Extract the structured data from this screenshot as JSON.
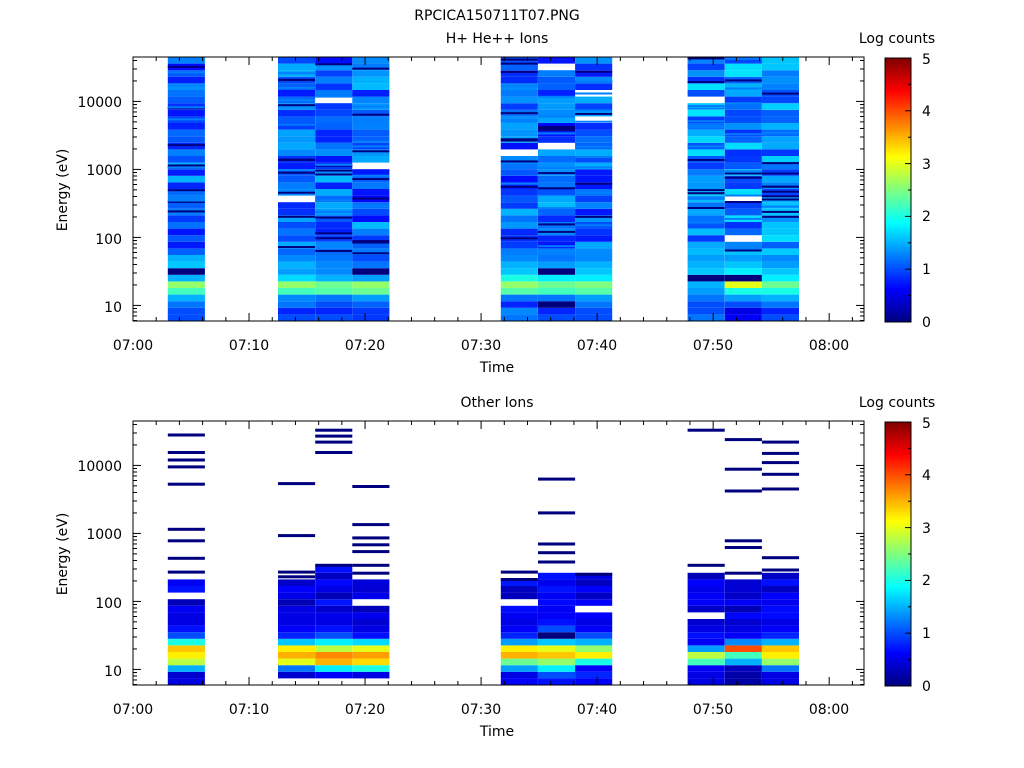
{
  "figure": {
    "title": "RPCICA150711T07.PNG"
  },
  "colormap": [
    "#00007f",
    "#0000ff",
    "#007fff",
    "#00ffff",
    "#7fff7f",
    "#ffff00",
    "#ff7f00",
    "#ff0000",
    "#7f0000"
  ],
  "chart_data": [
    {
      "type": "heatmap",
      "title": "H+ He++ Ions",
      "xlabel": "Time",
      "ylabel": "Energy (eV)",
      "x_ticks": [
        "07:00",
        "07:10",
        "07:20",
        "07:30",
        "07:40",
        "07:50",
        "08:00"
      ],
      "y_ticks": [
        "10",
        "100",
        "1000",
        "10000"
      ],
      "y_scale": "log",
      "ylim": [
        5.9,
        45000
      ],
      "xlim_minutes": [
        0,
        63
      ],
      "colorbar": {
        "label": "Log counts",
        "ticks": [
          "0",
          "1",
          "2",
          "3",
          "4",
          "5"
        ],
        "range": [
          0,
          5
        ]
      },
      "columns": [
        {
          "start": 3.0,
          "end": 6.2,
          "lowE": [
            1.0,
            1.0,
            1.2,
            1.5,
            2.2,
            2.6,
            1.5,
            0.0,
            1.6,
            1.5
          ],
          "baseHi": 1.1
        },
        {
          "start": 12.5,
          "end": 15.7,
          "lowE": [
            1.0,
            0.8,
            1.2,
            1.3,
            2.2,
            2.6,
            1.7,
            1.4,
            1.5,
            1.3
          ],
          "baseHi": 1.1
        },
        {
          "start": 15.7,
          "end": 18.9,
          "lowE": [
            1.0,
            0.8,
            1.0,
            1.2,
            2.3,
            2.4,
            1.5,
            1.3,
            1.3,
            1.2
          ],
          "baseHi": 1.1
        },
        {
          "start": 18.9,
          "end": 22.1,
          "lowE": [
            0.9,
            0.9,
            1.1,
            1.4,
            2.4,
            2.6,
            1.4,
            0.0,
            1.2,
            1.0
          ],
          "baseHi": 1.1
        },
        {
          "start": 31.7,
          "end": 34.9,
          "lowE": [
            1.2,
            1.3,
            0.8,
            1.2,
            2.3,
            2.6,
            2.0,
            1.6,
            1.5,
            1.3
          ],
          "baseHi": 1.1
        },
        {
          "start": 34.9,
          "end": 38.1,
          "lowE": [
            1.0,
            0.8,
            0.0,
            1.2,
            2.2,
            2.4,
            1.8,
            0.0,
            1.4,
            1.2
          ],
          "baseHi": 1.1
        },
        {
          "start": 38.1,
          "end": 41.3,
          "lowE": [
            1.0,
            1.0,
            1.2,
            1.4,
            2.3,
            2.5,
            1.8,
            1.6,
            1.5,
            1.3
          ],
          "baseHi": 1.1
        },
        {
          "start": 47.8,
          "end": 51.0,
          "lowE": [
            1.2,
            1.0,
            1.0,
            1.2,
            1.4,
            1.5,
            0.0,
            1.6,
            1.5,
            1.4
          ],
          "baseHi": 1.3
        },
        {
          "start": 51.0,
          "end": 54.2,
          "lowE": [
            0.6,
            0.5,
            1.0,
            1.4,
            2.0,
            3.0,
            0.0,
            1.8,
            1.6,
            1.4
          ],
          "baseHi": 1.3
        },
        {
          "start": 54.2,
          "end": 57.4,
          "lowE": [
            1.0,
            0.8,
            1.2,
            1.5,
            2.0,
            2.4,
            1.8,
            1.6,
            1.4,
            1.3
          ],
          "baseHi": 1.3
        }
      ]
    },
    {
      "type": "heatmap",
      "title": "Other Ions",
      "xlabel": "Time",
      "ylabel": "Energy (eV)",
      "x_ticks": [
        "07:00",
        "07:10",
        "07:20",
        "07:30",
        "07:40",
        "07:50",
        "08:00"
      ],
      "y_ticks": [
        "10",
        "100",
        "1000",
        "10000"
      ],
      "y_scale": "log",
      "ylim": [
        5.9,
        45000
      ],
      "xlim_minutes": [
        0,
        63
      ],
      "colorbar": {
        "label": "Log counts",
        "ticks": [
          "0",
          "1",
          "2",
          "3",
          "4",
          "5"
        ],
        "range": [
          0,
          5
        ]
      },
      "columns": [
        {
          "start": 3.0,
          "end": 6.2,
          "lowE": [
            0.5,
            0.4,
            1.5,
            2.8,
            3.2,
            3.4,
            2.0,
            1.0,
            0.7,
            0.5
          ],
          "sparse": [
            270,
            430,
            780,
            1150,
            5300,
            9500,
            12000,
            15500,
            28000
          ],
          "hiTop": 200
        },
        {
          "start": 12.5,
          "end": 15.7,
          "lowE": [
            null,
            0.4,
            1.2,
            3.0,
            3.5,
            3.2,
            1.6,
            0.8,
            0.6,
            0.5
          ],
          "sparse": [
            230,
            270,
            930,
            5400
          ],
          "hiTop": 200
        },
        {
          "start": 15.7,
          "end": 18.9,
          "lowE": [
            null,
            0.6,
            1.8,
            3.5,
            3.7,
            2.8,
            1.8,
            1.0,
            0.7,
            0.5
          ],
          "sparse": [
            340,
            15500,
            22000,
            27000,
            33000
          ],
          "hiTop": 270
        },
        {
          "start": 18.9,
          "end": 22.1,
          "lowE": [
            null,
            0.5,
            2.0,
            3.3,
            3.6,
            3.0,
            1.7,
            0.7,
            0.5,
            0.4
          ],
          "sparse": [
            260,
            340,
            540,
            680,
            860,
            1350,
            4900
          ],
          "hiTop": 200
        },
        {
          "start": 31.7,
          "end": 34.9,
          "lowE": [
            0.6,
            0.5,
            1.4,
            2.4,
            3.5,
            3.2,
            1.4,
            0.8,
            0.6,
            0.5
          ],
          "sparse": [
            210,
            270
          ],
          "hiTop": 200
        },
        {
          "start": 34.9,
          "end": 38.1,
          "lowE": [
            0.7,
            1.0,
            1.8,
            2.6,
            3.4,
            3.0,
            1.6,
            0.0,
            1.0,
            0.7
          ],
          "sparse": [
            380,
            520,
            700,
            2000,
            6300
          ],
          "hiTop": 230
        },
        {
          "start": 38.1,
          "end": 41.3,
          "lowE": [
            0.6,
            0.8,
            0.6,
            2.0,
            3.2,
            2.6,
            1.5,
            1.0,
            0.6,
            0.5
          ],
          "sparse": [
            250
          ],
          "hiTop": 230
        },
        {
          "start": 47.8,
          "end": 51.0,
          "lowE": [
            0.5,
            0.5,
            0.6,
            2.2,
            2.8,
            1.4,
            0.6,
            0.7,
            0.5,
            0.4
          ],
          "sparse": [
            340,
            33000
          ],
          "hiTop": 220
        },
        {
          "start": 51.0,
          "end": 54.2,
          "lowE": [
            0.2,
            0.2,
            0.3,
            1.5,
            2.2,
            4.0,
            1.3,
            0.6,
            0.5,
            0.4
          ],
          "sparse": [
            260,
            620,
            780,
            4200,
            8800,
            24000
          ],
          "hiTop": 180
        },
        {
          "start": 54.2,
          "end": 57.4,
          "lowE": [
            0.5,
            0.5,
            1.2,
            2.6,
            3.2,
            3.4,
            1.5,
            0.8,
            0.6,
            0.5
          ],
          "sparse": [
            290,
            440,
            4500,
            7400,
            11000,
            15000,
            22000
          ],
          "hiTop": 230
        }
      ]
    }
  ]
}
